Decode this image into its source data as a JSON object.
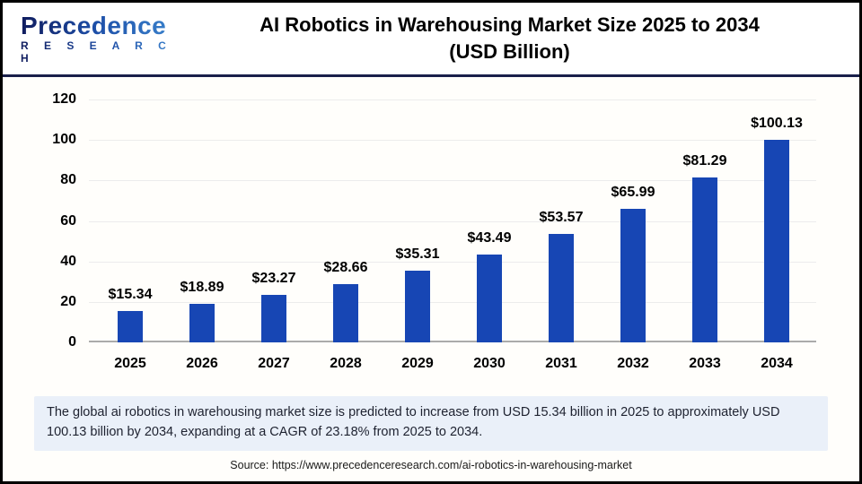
{
  "header": {
    "logo": {
      "brand": "Precedence",
      "sub": "R E S E A R C H"
    },
    "title_line1": "AI Robotics in Warehousing Market Size 2025 to 2034",
    "title_line2": "(USD Billion)"
  },
  "chart_data": {
    "type": "bar",
    "title": "AI Robotics in Warehousing Market Size 2025 to 2034 (USD Billion)",
    "categories": [
      "2025",
      "2026",
      "2027",
      "2028",
      "2029",
      "2030",
      "2031",
      "2032",
      "2033",
      "2034"
    ],
    "values": [
      15.34,
      18.89,
      23.27,
      28.66,
      35.31,
      43.49,
      53.57,
      65.99,
      81.29,
      100.13
    ],
    "bar_labels": [
      "$15.34",
      "$18.89",
      "$23.27",
      "$28.66",
      "$35.31",
      "$43.49",
      "$53.57",
      "$65.99",
      "$81.29",
      "$100.13"
    ],
    "xlabel": "",
    "ylabel": "",
    "ylim": [
      0,
      120
    ],
    "yticks": [
      0,
      20,
      40,
      60,
      80,
      100,
      120
    ],
    "grid": true,
    "legend": "none",
    "bar_color": "#1746b4"
  },
  "note": {
    "text": "The global ai robotics in warehousing market size is predicted to increase from USD 15.34 billion in 2025 to approximately USD 100.13 billion by 2034, expanding at a CAGR of 23.18% from 2025 to 2034."
  },
  "source": {
    "text": "Source: https://www.precedenceresearch.com/ai-robotics-in-warehousing-market"
  },
  "colors": {
    "bar": "#1746b4",
    "header_rule": "#191f4a",
    "note_bg": "#eaf0f9",
    "gridline": "#ececec",
    "axis_line": "#ababab",
    "page_border": "#000000"
  }
}
